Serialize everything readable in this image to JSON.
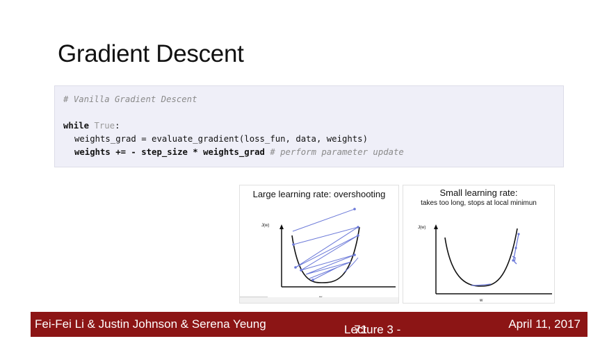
{
  "slide": {
    "title": "Gradient Descent"
  },
  "code": {
    "comment_header": "# Vanilla Gradient Descent",
    "while_kw": "while",
    "true_literal": "True",
    "colon": ":",
    "line_grad": "weights_grad = evaluate_gradient(loss_fun, data, weights)",
    "line_update_code": "weights += - step_size * weights_grad",
    "line_update_comment": "# perform parameter update"
  },
  "plots": {
    "large": {
      "title": "Large learning rate: overshooting",
      "ylabel": "J(w)",
      "xlabel": "w"
    },
    "small": {
      "title": "Small learning rate:",
      "subtitle": "takes too long, stops at local minimun",
      "ylabel": "J(w)",
      "xlabel": "w"
    }
  },
  "footer": {
    "authors": "Fei-Fei Li & Justin Johnson & Serena Yeung",
    "lecture": "Lecture 3 -",
    "page": "71",
    "date": "April 11, 2017"
  },
  "colors": {
    "footer_bg": "#8c1515",
    "code_bg": "#efeff8",
    "step_lines": "#6a78d8"
  }
}
